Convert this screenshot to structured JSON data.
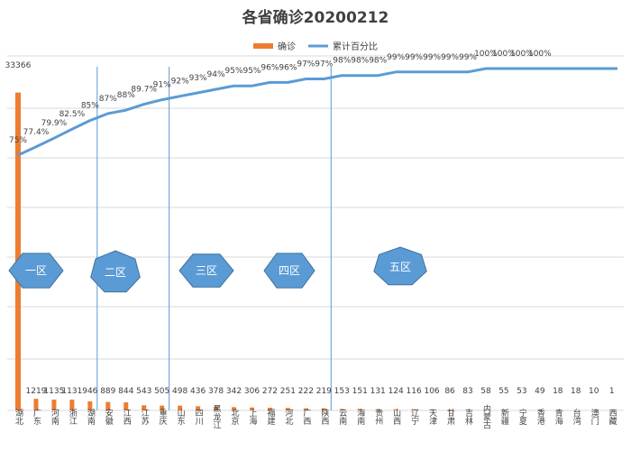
{
  "chart_data": {
    "type": "bar",
    "title": "各省确诊20200212",
    "legend": [
      {
        "name": "确诊",
        "color": "#ED7D31"
      },
      {
        "name": "累计百分比",
        "color": "#5B9BD5"
      }
    ],
    "categories": [
      "湖北",
      "广东",
      "河南",
      "浙江",
      "湖南",
      "安徽",
      "江西",
      "江苏",
      "重庆",
      "山东",
      "四川",
      "黑龙江",
      "北京",
      "上海",
      "福建",
      "河北",
      "广西",
      "陕西",
      "云南",
      "海南",
      "贵州",
      "山西",
      "辽宁",
      "天津",
      "甘肃",
      "吉林",
      "内蒙古",
      "新疆",
      "宁夏",
      "香港",
      "青海",
      "台湾",
      "澳门",
      "西藏"
    ],
    "series": [
      {
        "name": "确诊",
        "type": "bar",
        "color": "#ED7D31",
        "values": [
          33366,
          1219,
          1135,
          1131,
          946,
          889,
          844,
          543,
          505,
          498,
          436,
          378,
          342,
          306,
          272,
          251,
          222,
          219,
          153,
          151,
          131,
          124,
          116,
          106,
          86,
          83,
          58,
          55,
          53,
          49,
          18,
          18,
          10,
          1
        ],
        "labels": [
          "33366",
          "1219",
          "1135",
          "1131",
          "946",
          "889",
          "844",
          "543",
          "505",
          "498",
          "436",
          "378",
          "342",
          "306",
          "272",
          "251",
          "222",
          "219",
          "153",
          "151",
          "131",
          "124",
          "116",
          "106",
          "86",
          "83",
          "58",
          "55",
          "53",
          "49",
          "18",
          "18",
          "10",
          "1"
        ]
      },
      {
        "name": "累计百分比",
        "type": "line",
        "color": "#5B9BD5",
        "values": [
          75,
          77.4,
          79.9,
          82.5,
          85,
          87,
          88,
          89.7,
          91,
          92,
          93,
          94,
          95,
          95,
          96,
          96,
          97,
          97,
          98,
          98,
          98,
          99,
          99,
          99,
          99,
          99,
          100,
          100,
          100,
          100,
          100,
          100,
          100,
          100
        ],
        "labels": [
          "75%",
          "77.4%",
          "79.9%",
          "82.5%",
          "85%",
          "87%",
          "88%",
          "89.7%",
          "91%",
          "92%",
          "93%",
          "94%",
          "95%",
          "95%",
          "96%",
          "96%",
          "97%",
          "97%",
          "98%",
          "98%",
          "98%",
          "99%",
          "99%",
          "99%",
          "99%",
          "99%",
          "100%",
          "100%",
          "100%",
          "100%",
          "",
          "",
          "",
          ""
        ]
      }
    ],
    "zones": [
      {
        "label": "一区",
        "sides": 6
      },
      {
        "label": "二区",
        "sides": 7
      },
      {
        "label": "三区",
        "sides": 6
      },
      {
        "label": "四区",
        "sides": 6
      },
      {
        "label": "五区",
        "sides": 7
      }
    ],
    "zone_dividers_after": [
      "湖南",
      "重庆",
      "陕西"
    ],
    "zone_color": "#5B9BD5",
    "grid": "horizontal",
    "legend_position": "top"
  }
}
